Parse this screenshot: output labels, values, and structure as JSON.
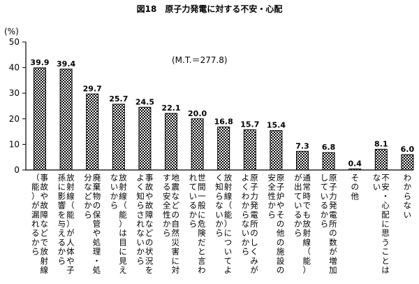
{
  "chart_data": {
    "type": "bar",
    "title": "図18　原子力発電に対する不安・心配",
    "ylabel": "(%)",
    "annotation": "(M.T.＝277.8)",
    "ylim": [
      0,
      50
    ],
    "yticks": [
      0,
      10,
      20,
      30,
      40,
      50
    ],
    "grid": false,
    "categories": [
      "事故や故障などで放射線（能）が漏れるから",
      "放射線（能）が人体や子孫に影響を与えるから",
      "廃棄物の保管や処理・処分などから",
      "放射線（能）は目に見えないから",
      "事故や故障などの状況をよく知らされないから",
      "地震などの自然災害に対する安全性から",
      "世間一般に危険だと言われているから",
      "放射線（能）についてよく知らないから",
      "原子力発電所のしくみがよくわからないから",
      "原子炉やその他の施設の安全性から",
      "通常時でも放射線（能）が出ているから",
      "原子力発電所の数が増加しているから",
      "その他",
      "不安・心配に思うことはない",
      "わからない"
    ],
    "values": [
      39.9,
      39.4,
      29.7,
      25.7,
      24.5,
      22.1,
      20.0,
      16.8,
      15.7,
      15.4,
      7.3,
      6.8,
      0.4,
      8.1,
      6.0
    ],
    "value_labels": [
      "39.9",
      "39.4",
      "29.7",
      "25.7",
      "24.5",
      "22.1",
      "20.0",
      "16.8",
      "15.7",
      "15.4",
      "7.3",
      "6.8",
      "0.4",
      "8.1",
      "6.0"
    ],
    "colors": {
      "bar_stroke": "#000000",
      "bar_pattern": "#000000",
      "background": "#ffffff"
    }
  }
}
